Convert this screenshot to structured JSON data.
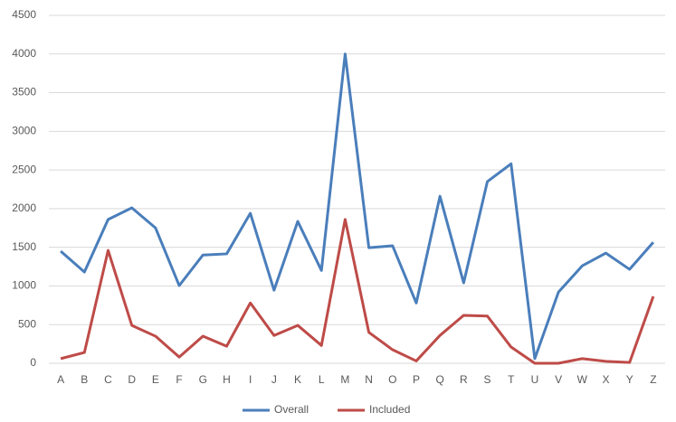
{
  "chart_data": {
    "type": "line",
    "categories": [
      "A",
      "B",
      "C",
      "D",
      "E",
      "F",
      "G",
      "H",
      "I",
      "J",
      "K",
      "L",
      "M",
      "N",
      "O",
      "P",
      "Q",
      "R",
      "S",
      "T",
      "U",
      "V",
      "W",
      "X",
      "Y",
      "Z"
    ],
    "series": [
      {
        "name": "Overall",
        "color": "#4a7ebb",
        "values": [
          1450,
          1180,
          1860,
          2010,
          1750,
          1005,
          1400,
          1415,
          1940,
          945,
          1835,
          1200,
          4000,
          1495,
          1520,
          780,
          2160,
          1040,
          2350,
          2580,
          60,
          920,
          1260,
          1425,
          1215,
          1565
        ]
      },
      {
        "name": "Included",
        "color": "#be4b48",
        "values": [
          60,
          140,
          1460,
          490,
          350,
          80,
          350,
          220,
          780,
          360,
          490,
          230,
          1860,
          400,
          175,
          30,
          360,
          620,
          610,
          210,
          0,
          0,
          60,
          25,
          10,
          865
        ]
      }
    ],
    "ylim": [
      0,
      4500
    ],
    "yticks": [
      0,
      500,
      1000,
      1500,
      2000,
      2500,
      3000,
      3500,
      4000,
      4500
    ],
    "grid": true,
    "legend": "bottom"
  }
}
